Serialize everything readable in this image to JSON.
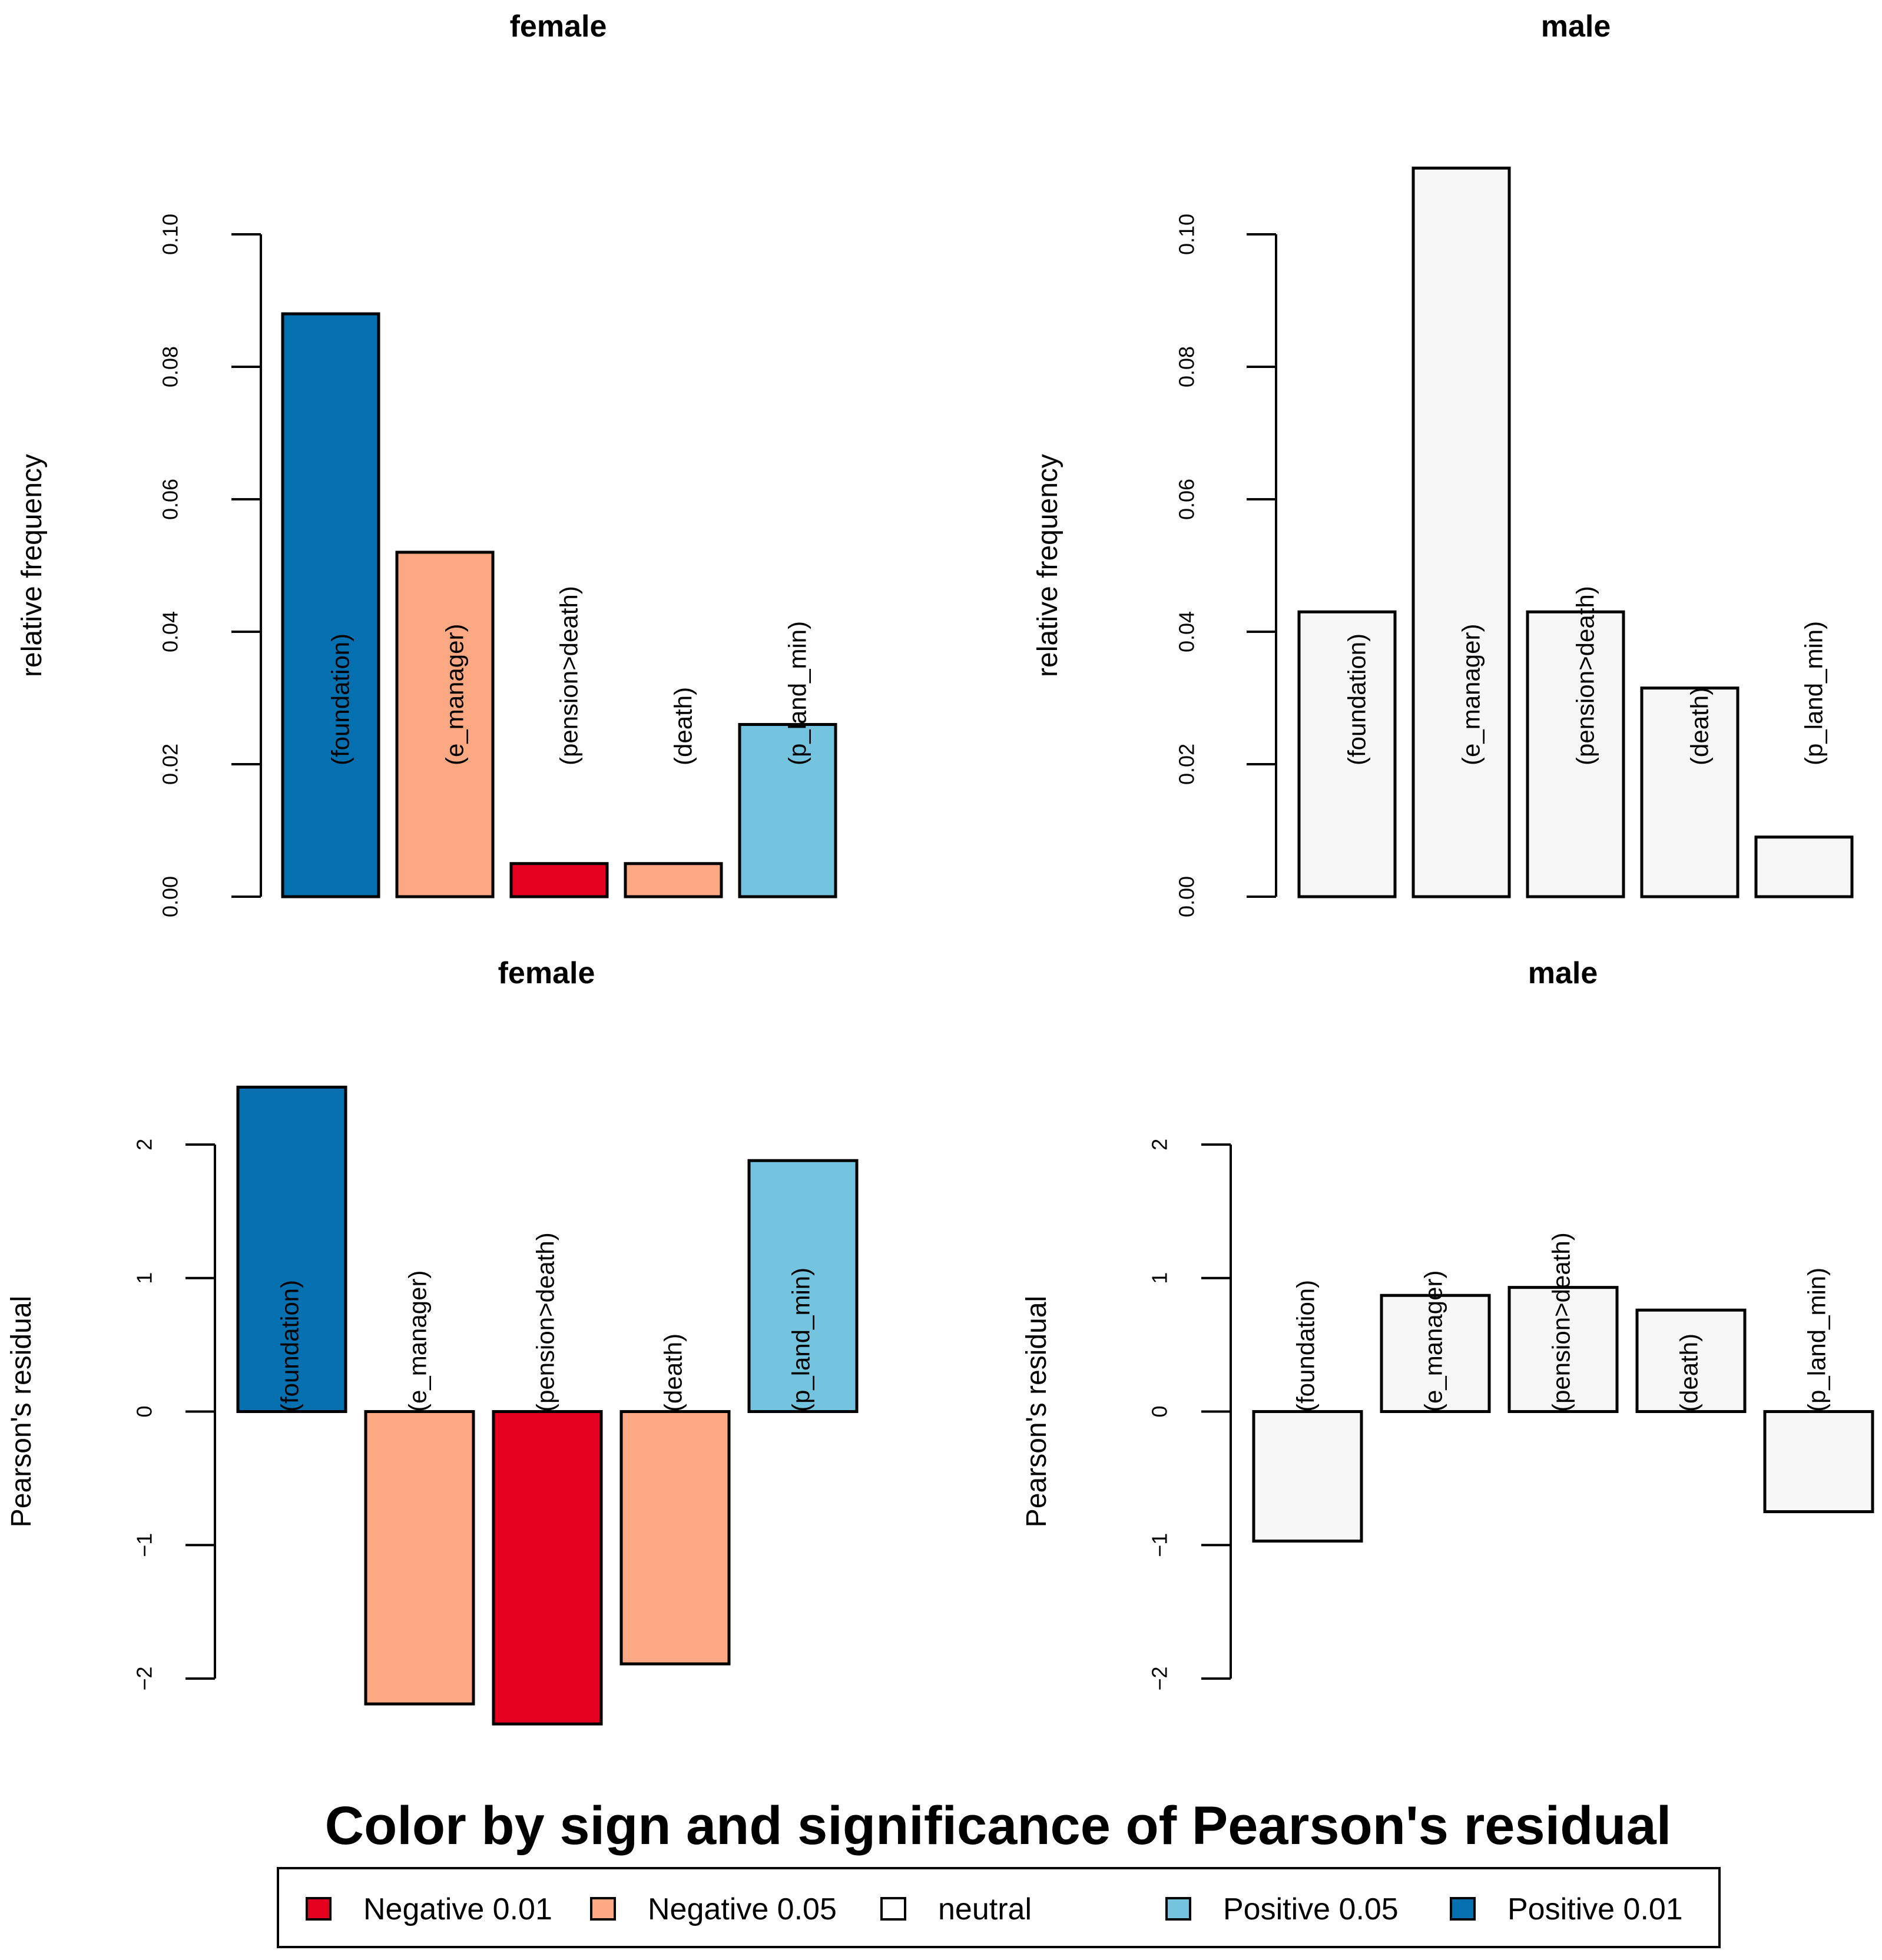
{
  "chart_data": [
    {
      "type": "bar",
      "title": "female",
      "ylabel": "relative frequency",
      "ylim": [
        0,
        0.1
      ],
      "yticks": [
        "0.00",
        "0.02",
        "0.04",
        "0.06",
        "0.08",
        "0.10"
      ],
      "categories": [
        "(foundation)",
        "(e_manager)",
        "(pension>death)",
        "(death)",
        "(p_land_min)"
      ],
      "values": [
        0.088,
        0.052,
        0.005,
        0.005,
        0.026
      ],
      "colors": [
        "#0570b0",
        "#fca882",
        "#e5001f",
        "#fca882",
        "#74c4df"
      ]
    },
    {
      "type": "bar",
      "title": "male",
      "ylabel": "relative frequency",
      "ylim": [
        0,
        0.1
      ],
      "yticks": [
        "0.00",
        "0.02",
        "0.04",
        "0.06",
        "0.08",
        "0.10"
      ],
      "categories": [
        "(foundation)",
        "(e_manager)",
        "(pension>death)",
        "(death)",
        "(p_land_min)"
      ],
      "values": [
        0.043,
        0.11,
        0.043,
        0.0315,
        0.009
      ],
      "colors": [
        "#f7f7f7",
        "#f7f7f7",
        "#f7f7f7",
        "#f7f7f7",
        "#f7f7f7"
      ]
    },
    {
      "type": "bar",
      "title": "female",
      "ylabel": "Pearson's residual",
      "ylim": [
        -2,
        2
      ],
      "yticks": [
        "−2",
        "−1",
        "0",
        "1",
        "2"
      ],
      "categories": [
        "(foundation)",
        "(e_manager)",
        "(pension>death)",
        "(death)",
        "(p_land_min)"
      ],
      "values": [
        2.43,
        -2.19,
        -2.34,
        -1.89,
        1.88
      ],
      "colors": [
        "#0570b0",
        "#fca882",
        "#e5001f",
        "#fca882",
        "#74c4df"
      ]
    },
    {
      "type": "bar",
      "title": "male",
      "ylabel": "Pearson's residual",
      "ylim": [
        -2,
        2
      ],
      "yticks": [
        "−2",
        "−1",
        "0",
        "1",
        "2"
      ],
      "categories": [
        "(foundation)",
        "(e_manager)",
        "(pension>death)",
        "(death)",
        "(p_land_min)"
      ],
      "values": [
        -0.97,
        0.87,
        0.93,
        0.76,
        -0.75
      ],
      "colors": [
        "#f7f7f7",
        "#f7f7f7",
        "#f7f7f7",
        "#f7f7f7",
        "#f7f7f7"
      ]
    }
  ],
  "legend": {
    "title": "Color by sign and significance of Pearson's residual",
    "items": [
      {
        "label": "Negative 0.01",
        "color": "#e5001f"
      },
      {
        "label": "Negative 0.05",
        "color": "#fca882"
      },
      {
        "label": "neutral",
        "color": "#ffffff"
      },
      {
        "label": "Positive 0.05",
        "color": "#74c4df"
      },
      {
        "label": "Positive 0.01",
        "color": "#0570b0"
      }
    ]
  }
}
